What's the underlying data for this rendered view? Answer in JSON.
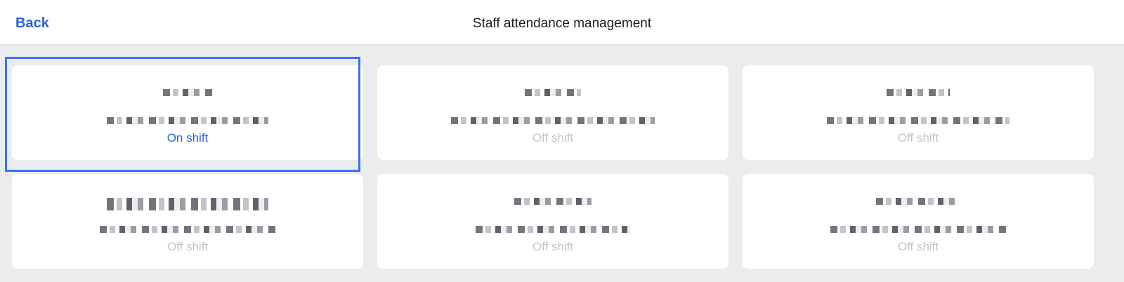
{
  "header": {
    "back_label": "Back",
    "title": "Staff attendance management"
  },
  "accent_color": "#2a5fe0",
  "staff": [
    {
      "status": "On shift",
      "on_shift": true,
      "selected": true
    },
    {
      "status": "Off shift",
      "on_shift": false
    },
    {
      "status": "Off shift",
      "on_shift": false
    },
    {
      "status": "Off shift",
      "on_shift": false
    },
    {
      "status": "Off shift",
      "on_shift": false
    },
    {
      "status": "Off shift",
      "on_shift": false
    }
  ]
}
